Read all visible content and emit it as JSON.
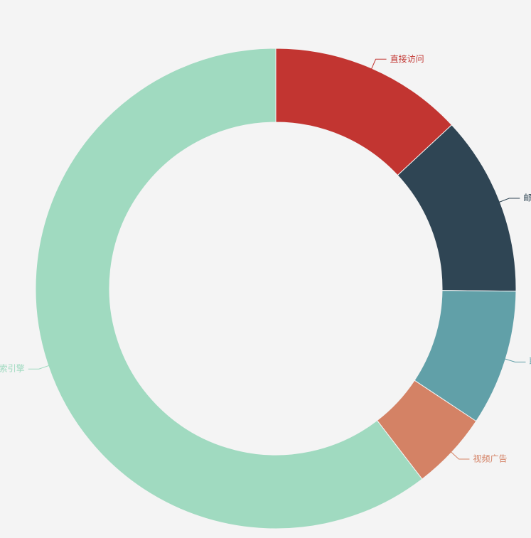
{
  "chart_data": {
    "type": "pie",
    "categories": [
      "直接访问",
      "邮件营销",
      "联盟广告",
      "视频广告",
      "搜索引擎"
    ],
    "values": [
      335,
      310,
      234,
      135,
      1548
    ],
    "colors": [
      "#c23531",
      "#2f4554",
      "#61a0a8",
      "#d48265",
      "#a0dac0"
    ]
  }
}
